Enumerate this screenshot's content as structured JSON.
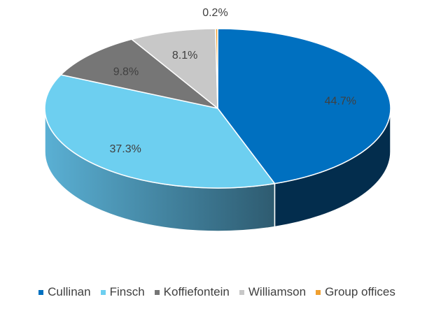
{
  "chart_data": {
    "type": "pie",
    "style": "3d",
    "title": "",
    "legend_position": "bottom",
    "slices": [
      {
        "label": "Cullinan",
        "value": 44.7,
        "display": "44.7%",
        "color": "#0070c0",
        "side_color": "#032d4d"
      },
      {
        "label": "Finsch",
        "value": 37.3,
        "display": "37.3%",
        "color": "#6dcff0",
        "side_color": "#3c7f99"
      },
      {
        "label": "Koffiefontein",
        "value": 9.8,
        "display": "9.8%",
        "color": "#767676",
        "side_color": "#4a4a4a"
      },
      {
        "label": "Williamson",
        "value": 8.1,
        "display": "8.1%",
        "color": "#c8c8c8",
        "side_color": "#8f8f8f"
      },
      {
        "label": "Group offices",
        "value": 0.2,
        "display": "0.2%",
        "color": "#f0a030",
        "side_color": "#a86a10"
      }
    ]
  }
}
